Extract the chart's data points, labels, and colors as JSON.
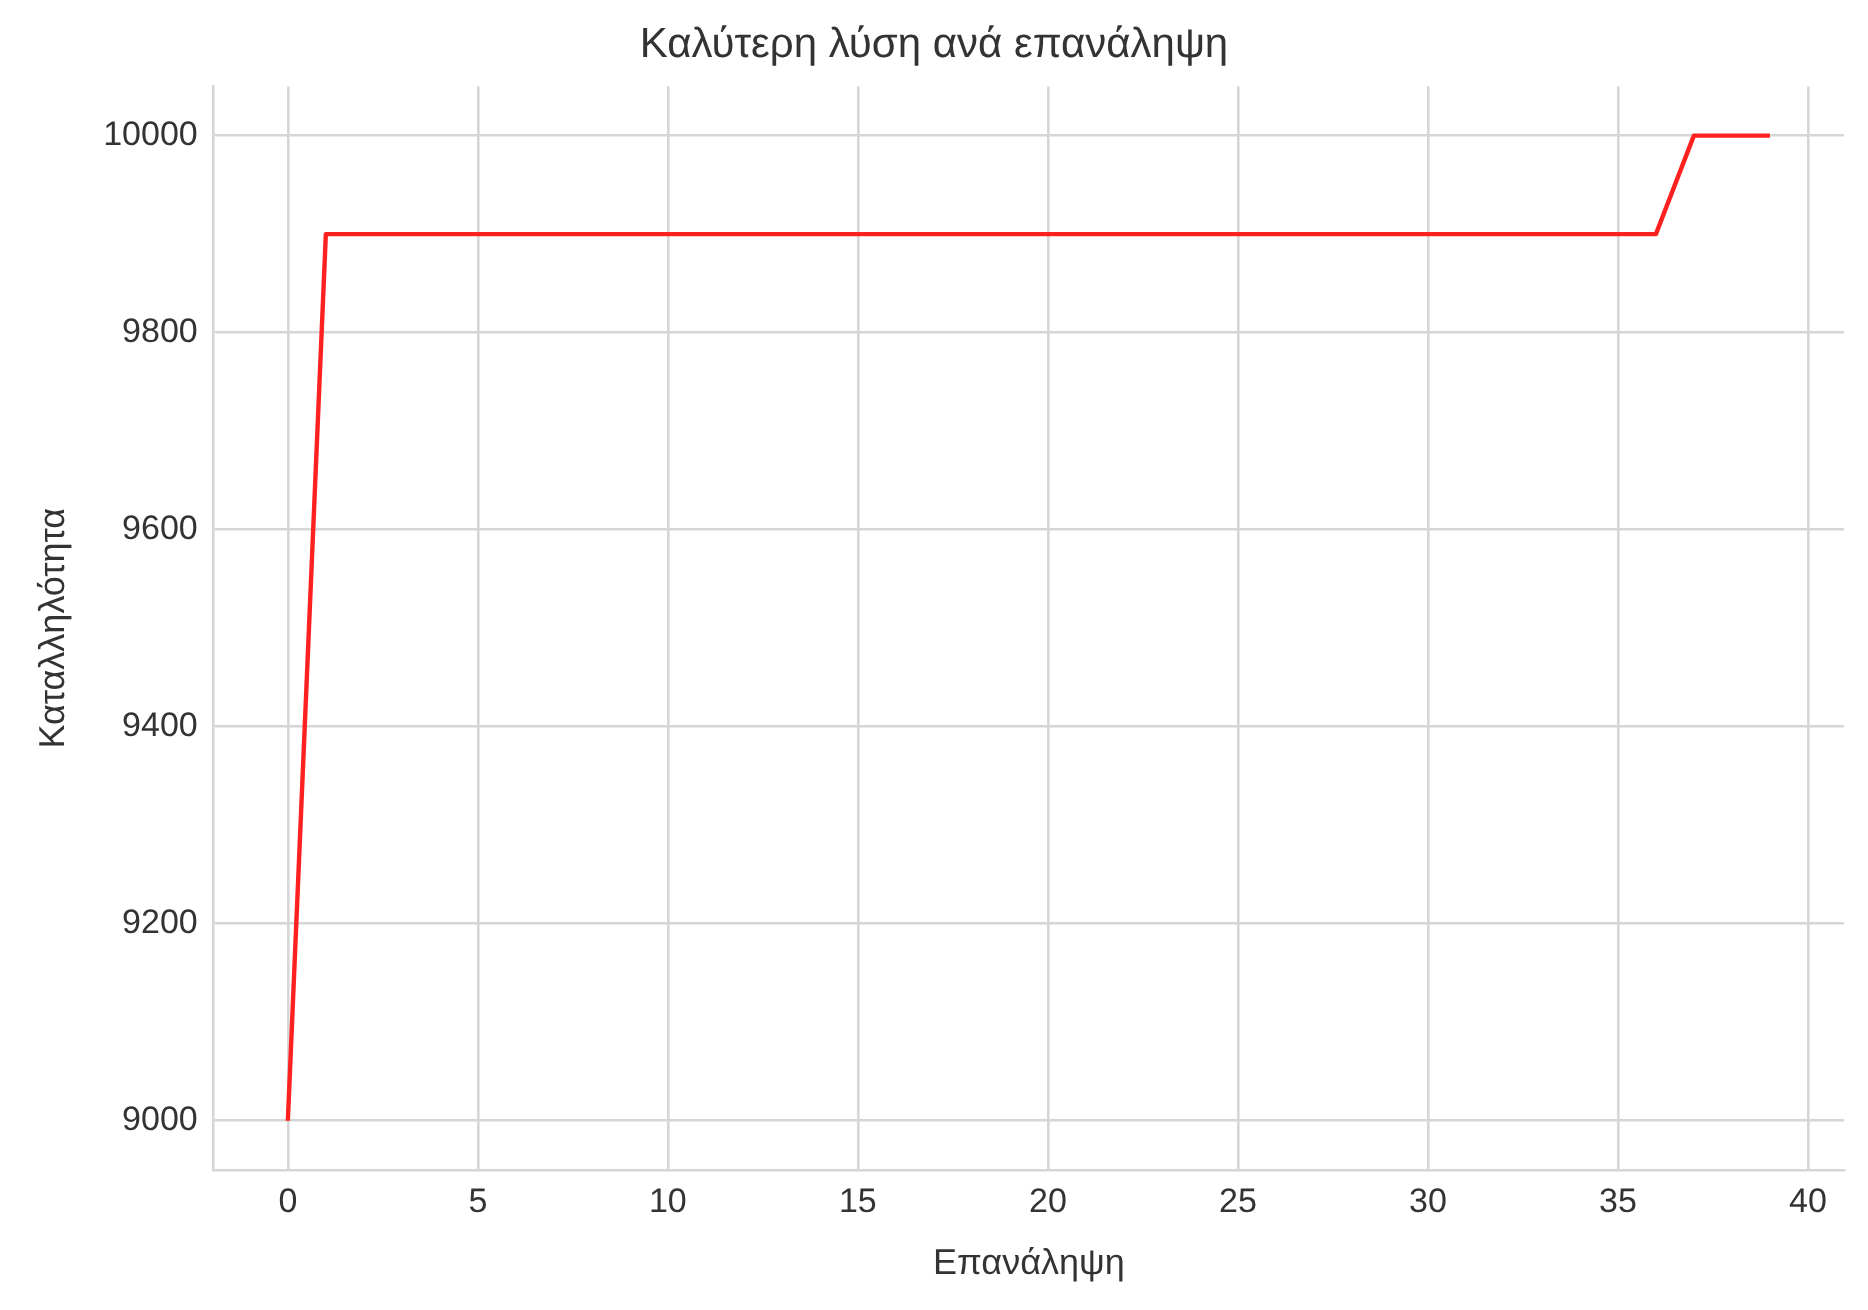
{
  "chart_data": {
    "type": "line",
    "title": "Καλύτερη λύση ανά επανάληψη",
    "xlabel": "Επανάληψη",
    "ylabel": "Καταλληλότητα",
    "x": [
      0,
      1,
      2,
      3,
      4,
      5,
      6,
      7,
      8,
      9,
      10,
      11,
      12,
      13,
      14,
      15,
      16,
      17,
      18,
      19,
      20,
      21,
      22,
      23,
      24,
      25,
      26,
      27,
      28,
      29,
      30,
      31,
      32,
      33,
      34,
      35,
      36,
      37,
      38,
      39
    ],
    "series": [
      {
        "color": "#ff2020",
        "values": [
          9000,
          9900,
          9900,
          9900,
          9900,
          9900,
          9900,
          9900,
          9900,
          9900,
          9900,
          9900,
          9900,
          9900,
          9900,
          9900,
          9900,
          9900,
          9900,
          9900,
          9900,
          9900,
          9900,
          9900,
          9900,
          9900,
          9900,
          9900,
          9900,
          9900,
          9900,
          9900,
          9900,
          9900,
          9900,
          9900,
          9900,
          10000,
          10000,
          10000
        ]
      }
    ],
    "xlim": [
      -1.95,
      40.95
    ],
    "xticks": [
      0,
      5,
      10,
      15,
      20,
      25,
      30,
      35,
      40
    ],
    "ylim": [
      8950,
      10050
    ],
    "yticks": [
      9000,
      9200,
      9400,
      9600,
      9800,
      10000
    ],
    "grid": true,
    "marker": "none",
    "line_style": "solid"
  }
}
